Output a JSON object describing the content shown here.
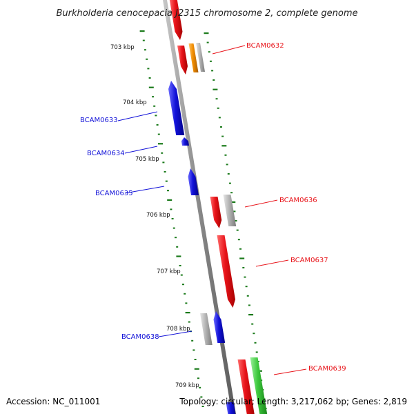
{
  "title": "Burkholderia cenocepacia J2315 chromosome 2, complete genome",
  "footer": {
    "accession": "Accession: NC_011001",
    "summary": "Topology: circular; Length: 3,217,062 bp; Genes: 2,819"
  },
  "kbp_labels": [
    {
      "text": "703 kbp"
    },
    {
      "text": "704 kbp"
    },
    {
      "text": "705 kbp"
    },
    {
      "text": "706 kbp"
    },
    {
      "text": "707 kbp"
    },
    {
      "text": "708 kbp"
    },
    {
      "text": "709 kbp"
    }
  ],
  "genes": [
    {
      "name": "BCAM0632",
      "strand": "plus",
      "color": "#e8141a"
    },
    {
      "name": "BCAM0633",
      "strand": "minus",
      "color": "#1212d8"
    },
    {
      "name": "BCAM0634",
      "strand": "minus",
      "color": "#1212d8"
    },
    {
      "name": "BCAM0635",
      "strand": "minus",
      "color": "#1212d8"
    },
    {
      "name": "BCAM0636",
      "strand": "plus",
      "color": "#e8141a"
    },
    {
      "name": "BCAM0637",
      "strand": "plus",
      "color": "#e8141a"
    },
    {
      "name": "BCAM0638",
      "strand": "minus",
      "color": "#1212d8"
    },
    {
      "name": "BCAM0639",
      "strand": "plus",
      "color": "#e8141a"
    }
  ],
  "colors": {
    "plus_gene": "#e8141a",
    "minus_gene": "#1212d8",
    "rna": "#b4b4b4",
    "orange_feature": "#f08c00",
    "green_feature": "#3cc83c",
    "ticks": "#1a7a1a",
    "backbone": "#888888"
  }
}
